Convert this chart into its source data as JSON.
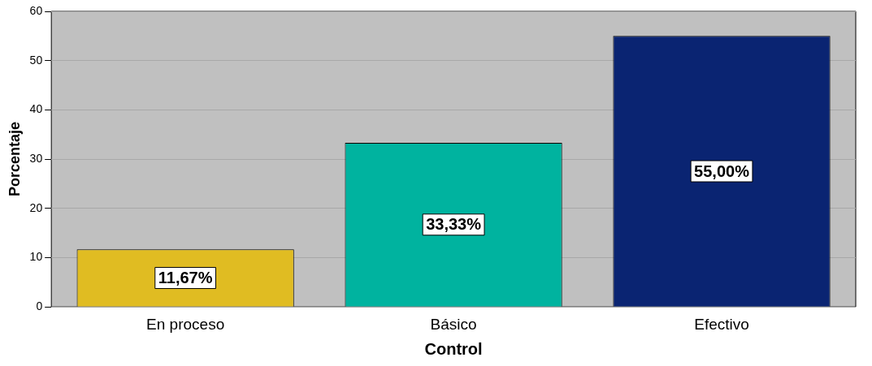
{
  "chart_data": {
    "type": "bar",
    "xlabel": "Control",
    "ylabel": "Porcentaje",
    "categories": [
      "En proceso",
      "Básico",
      "Efectivo"
    ],
    "values": [
      11.67,
      33.33,
      55.0
    ],
    "colors": [
      "#e0bc22",
      "#00b39f",
      "#0a2472"
    ],
    "value_labels": [
      "11,67%",
      "33,33%",
      "55,00%"
    ],
    "ylim": [
      0,
      60
    ],
    "yticks": [
      0,
      10,
      20,
      30,
      40,
      50,
      60
    ],
    "grid": "y",
    "legend": false
  }
}
